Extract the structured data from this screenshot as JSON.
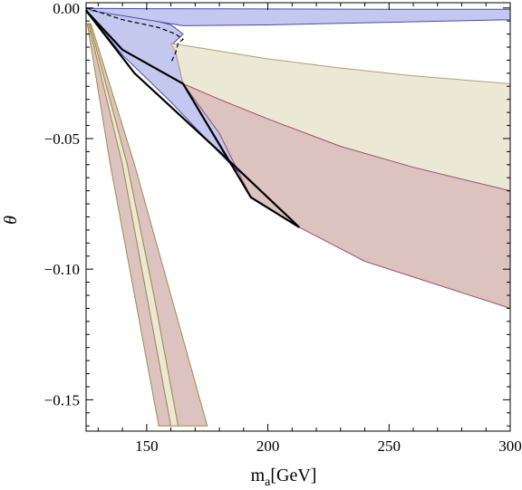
{
  "chart_data": {
    "type": "area",
    "xlabel": "m",
    "xlabel_sub": "a",
    "xlabel_unit": "[GeV]",
    "ylabel": "θ",
    "xlim": [
      125,
      300
    ],
    "ylim": [
      -0.162,
      0.002
    ],
    "x_ticks": [
      150,
      200,
      250,
      300
    ],
    "y_ticks": [
      0.0,
      -0.05,
      -0.1,
      -0.15
    ],
    "x_tick_labels": [
      "150",
      "200",
      "250",
      "300"
    ],
    "y_tick_labels": [
      "0.00",
      "−0.05",
      "−0.10",
      "−0.15"
    ],
    "grid": false,
    "colors": {
      "blue_fill": "#c5c8ee",
      "blue_edge": "#4a4ab0",
      "tan_fill": "#ebe8d6",
      "tan_edge": "#b0a070",
      "rose_fill": "#dcc3bf",
      "rose_edge": "#a05070",
      "olive_edge": "#a08a4c",
      "bound_line": "#000000"
    },
    "regions": [
      {
        "fill": "blue_fill",
        "edge": "blue_edge",
        "points": [
          [
            125,
            0.0
          ],
          [
            130,
            -0.0009
          ],
          [
            140,
            -0.0025
          ],
          [
            150,
            -0.004
          ],
          [
            160,
            -0.0065
          ],
          [
            165,
            -0.01
          ],
          [
            161,
            -0.0135
          ],
          [
            162,
            -0.017
          ],
          [
            165,
            -0.029
          ],
          [
            180,
            -0.048
          ],
          [
            193,
            -0.0725
          ],
          [
            213,
            -0.084
          ],
          [
            200,
            -0.0745
          ],
          [
            180,
            -0.0555
          ],
          [
            160,
            -0.036
          ],
          [
            140,
            -0.018
          ],
          [
            126,
            -0.002
          ],
          [
            125,
            0.0
          ]
        ]
      },
      {
        "fill": "blue_fill",
        "edge": "blue_edge",
        "points": [
          [
            127,
            -0.001
          ],
          [
            150,
            -0.0045
          ],
          [
            165,
            -0.0068
          ],
          [
            200,
            -0.0065
          ],
          [
            250,
            -0.0055
          ],
          [
            300,
            -0.0045
          ],
          [
            300,
            -0.0005
          ],
          [
            250,
            -0.0005
          ],
          [
            200,
            -0.0004
          ],
          [
            150,
            -0.0003
          ],
          [
            127,
            -0.0002
          ]
        ]
      },
      {
        "fill": "tan_fill",
        "edge": "tan_edge",
        "points": [
          [
            160,
            -0.0135
          ],
          [
            180,
            -0.0165
          ],
          [
            200,
            -0.0195
          ],
          [
            230,
            -0.023
          ],
          [
            260,
            -0.026
          ],
          [
            300,
            -0.029
          ],
          [
            300,
            -0.07
          ],
          [
            260,
            -0.061
          ],
          [
            230,
            -0.053
          ],
          [
            200,
            -0.0425
          ],
          [
            180,
            -0.035
          ],
          [
            165,
            -0.029
          ],
          [
            162,
            -0.017
          ],
          [
            160,
            -0.0135
          ]
        ]
      },
      {
        "fill": "rose_fill",
        "edge": "rose_edge",
        "points": [
          [
            165,
            -0.029
          ],
          [
            180,
            -0.035
          ],
          [
            200,
            -0.0425
          ],
          [
            230,
            -0.053
          ],
          [
            260,
            -0.061
          ],
          [
            300,
            -0.07
          ],
          [
            300,
            -0.115
          ],
          [
            270,
            -0.106
          ],
          [
            240,
            -0.097
          ],
          [
            213,
            -0.084
          ],
          [
            193,
            -0.0725
          ],
          [
            180,
            -0.048
          ],
          [
            165,
            -0.029
          ]
        ]
      },
      {
        "fill": "rose_fill",
        "edge": "olive_edge",
        "points": [
          [
            125.5,
            -0.006
          ],
          [
            135,
            -0.06
          ],
          [
            145,
            -0.11
          ],
          [
            155,
            -0.16
          ],
          [
            160,
            -0.16
          ],
          [
            150,
            -0.11
          ],
          [
            140,
            -0.06
          ],
          [
            126,
            -0.006
          ]
        ]
      },
      {
        "fill": "tan_fill",
        "edge": "olive_edge",
        "points": [
          [
            126,
            -0.006
          ],
          [
            140,
            -0.06
          ],
          [
            150,
            -0.11
          ],
          [
            160,
            -0.16
          ],
          [
            163,
            -0.16
          ],
          [
            153,
            -0.11
          ],
          [
            142,
            -0.06
          ],
          [
            126.5,
            -0.006
          ]
        ]
      },
      {
        "fill": "rose_fill",
        "edge": "olive_edge",
        "points": [
          [
            126.5,
            -0.006
          ],
          [
            142,
            -0.06
          ],
          [
            153,
            -0.11
          ],
          [
            163,
            -0.16
          ],
          [
            175,
            -0.16
          ],
          [
            160,
            -0.11
          ],
          [
            145,
            -0.06
          ],
          [
            127,
            -0.006
          ]
        ]
      }
    ],
    "dashed_curves": [
      [
        [
          125,
          0.0
        ],
        [
          140,
          -0.0045
        ],
        [
          155,
          -0.0075
        ],
        [
          162,
          -0.01
        ],
        [
          165,
          -0.012
        ],
        [
          163,
          -0.0135
        ],
        [
          162,
          -0.017
        ],
        [
          160,
          -0.021
        ]
      ]
    ],
    "bold_lines": [
      [
        [
          125,
          -0.001
        ],
        [
          140,
          -0.016
        ],
        [
          165,
          -0.029
        ],
        [
          193,
          -0.0725
        ],
        [
          213,
          -0.084
        ]
      ],
      [
        [
          125,
          -0.001
        ],
        [
          145,
          -0.025
        ],
        [
          180,
          -0.055
        ],
        [
          213,
          -0.084
        ]
      ]
    ]
  }
}
